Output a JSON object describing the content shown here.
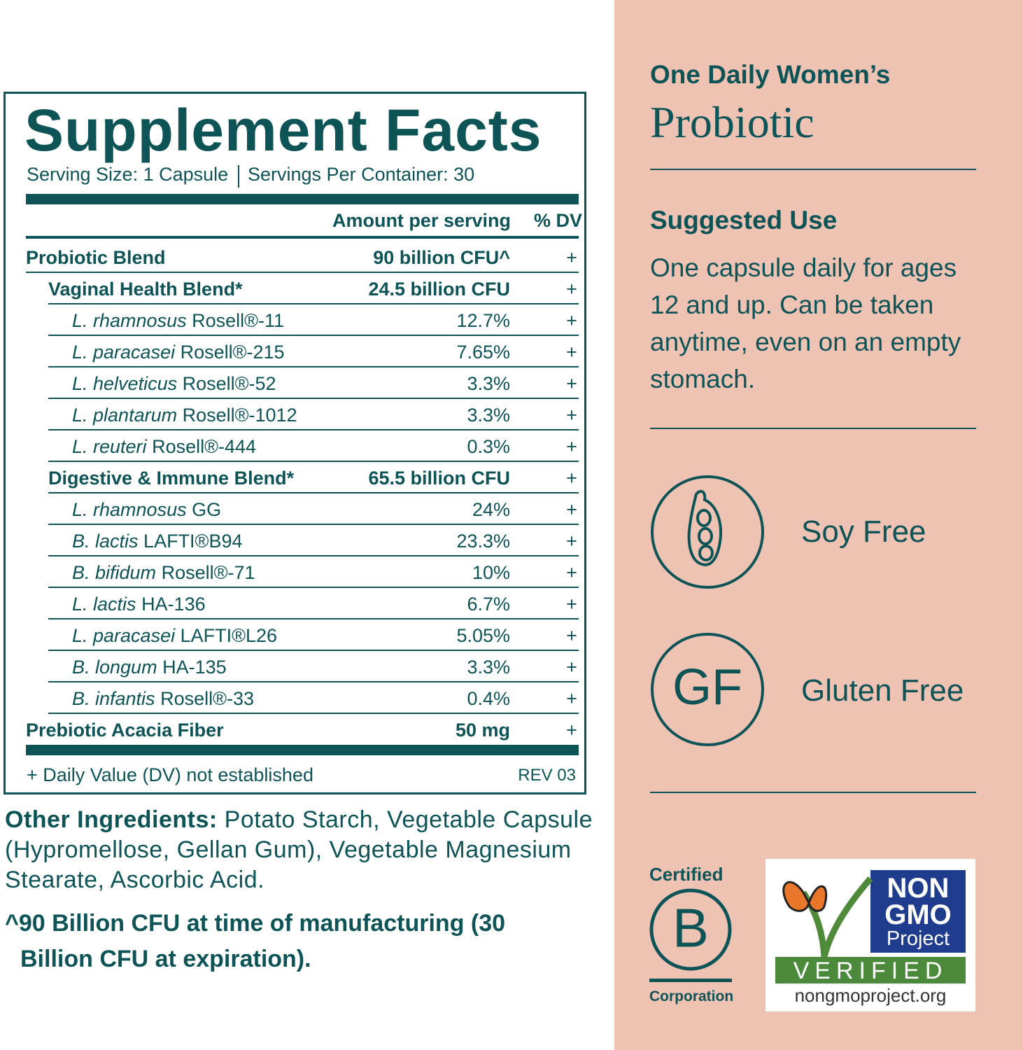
{
  "supplement_facts": {
    "title": "Supplement Facts",
    "serving_size": "Serving Size: 1 Capsule",
    "servings_per_container": "Servings Per Container: 30",
    "header": {
      "amount": "Amount per serving",
      "dv": "% DV"
    },
    "probiotic_blend": {
      "name": "Probiotic Blend",
      "amount": "90 billion CFU^",
      "dv": "+",
      "blends": [
        {
          "name": "Vaginal Health Blend*",
          "amount": "24.5 billion CFU",
          "dv": "+",
          "strains": [
            {
              "species": "L. rhamnosus",
              "strain": "Rosell®-11",
              "amount": "12.7%",
              "dv": "+"
            },
            {
              "species": "L. paracasei",
              "strain": "Rosell®-215",
              "amount": "7.65%",
              "dv": "+"
            },
            {
              "species": "L. helveticus",
              "strain": "Rosell®-52",
              "amount": "3.3%",
              "dv": "+"
            },
            {
              "species": "L. plantarum",
              "strain": "Rosell®-1012",
              "amount": "3.3%",
              "dv": "+"
            },
            {
              "species": "L. reuteri",
              "strain": "Rosell®-444",
              "amount": "0.3%",
              "dv": "+"
            }
          ]
        },
        {
          "name": "Digestive & Immune Blend*",
          "amount": "65.5 billion CFU",
          "dv": "+",
          "strains": [
            {
              "species": "L. rhamnosus",
              "strain": "GG",
              "amount": "24%",
              "dv": "+"
            },
            {
              "species": "B. lactis",
              "strain": "LAFTI®B94",
              "amount": "23.3%",
              "dv": "+"
            },
            {
              "species": "B. bifidum",
              "strain": "Rosell®-71",
              "amount": "10%",
              "dv": "+"
            },
            {
              "species": "L. lactis",
              "strain": "HA-136",
              "amount": "6.7%",
              "dv": "+"
            },
            {
              "species": "L. paracasei",
              "strain": "LAFTI®L26",
              "amount": "5.05%",
              "dv": "+"
            },
            {
              "species": "B. longum",
              "strain": "HA-135",
              "amount": "3.3%",
              "dv": "+"
            },
            {
              "species": "B. infantis",
              "strain": "Rosell®-33",
              "amount": "0.4%",
              "dv": "+"
            }
          ]
        }
      ]
    },
    "prebiotic": {
      "name": "Prebiotic Acacia Fiber",
      "amount": "50 mg",
      "dv": "+"
    },
    "footnote": "+ Daily Value (DV) not established",
    "revision": "REV 03"
  },
  "other_ingredients": {
    "label": "Other Ingredients:",
    "text": "Potato Starch, Vegetable Capsule  (Hypromellose, Gellan Gum), Vegetable Magnesium Stearate, Ascorbic Acid."
  },
  "cfu_note": "^90 Billion CFU at time of manufacturing (30 Billion CFU at expiration).",
  "product": {
    "brand": "One Daily Women’s",
    "name": "Probiotic"
  },
  "suggested_use": {
    "title": "Suggested Use",
    "text": "One capsule daily for ages 12 and up. Can be taken anytime, even on an empty stomach."
  },
  "badges": [
    {
      "icon": null,
      "label": "Soy Free"
    },
    {
      "icon": "GF",
      "label": "Gluten Free"
    }
  ],
  "certified_b": {
    "top": "Certified",
    "letter": "B",
    "bottom": "Corporation"
  },
  "non_gmo": {
    "line1": "NON",
    "line2": "GMO",
    "line3": "Project",
    "verified": "VERIFIED",
    "url": "nongmoproject.org"
  }
}
